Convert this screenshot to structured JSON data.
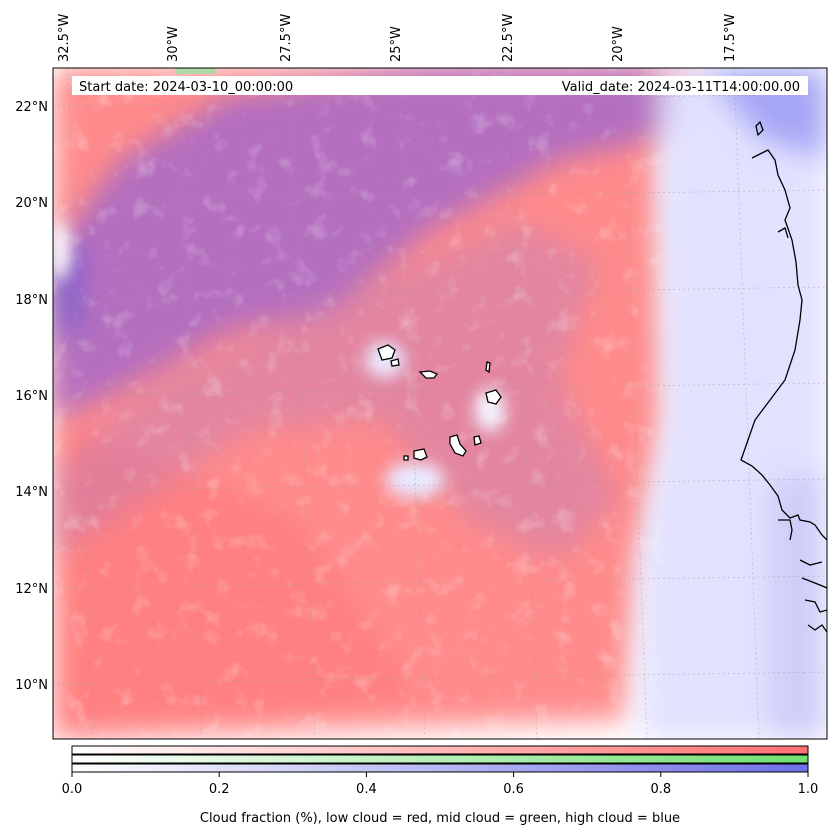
{
  "map": {
    "title_left": "Start date: 2024-03-10_00:00:00",
    "title_right": "Valid_date: 2024-03-11T14:00:00.00",
    "lon_labels": [
      "32.5°W",
      "30°W",
      "27.5°W",
      "25°W",
      "22.5°W",
      "20°W",
      "17.5°W"
    ],
    "lat_labels": [
      "22°N",
      "20°N",
      "18°N",
      "16°N",
      "14°N",
      "12°N",
      "10°N"
    ],
    "lon_range": [
      -33,
      -16
    ],
    "lat_range": [
      8.9,
      22.8
    ],
    "colors": {
      "low_cloud": "#ff7f7f",
      "mid_cloud": "#7fe07f",
      "high_cloud": "#8080f0",
      "background": "#ffffff"
    }
  },
  "colorbar": {
    "tick_labels": [
      "0.0",
      "0.2",
      "0.4",
      "0.6",
      "0.8",
      "1.0"
    ],
    "range": [
      0,
      1
    ],
    "label": "Cloud fraction (%), low cloud = red, mid cloud = green, high cloud = blue"
  }
}
